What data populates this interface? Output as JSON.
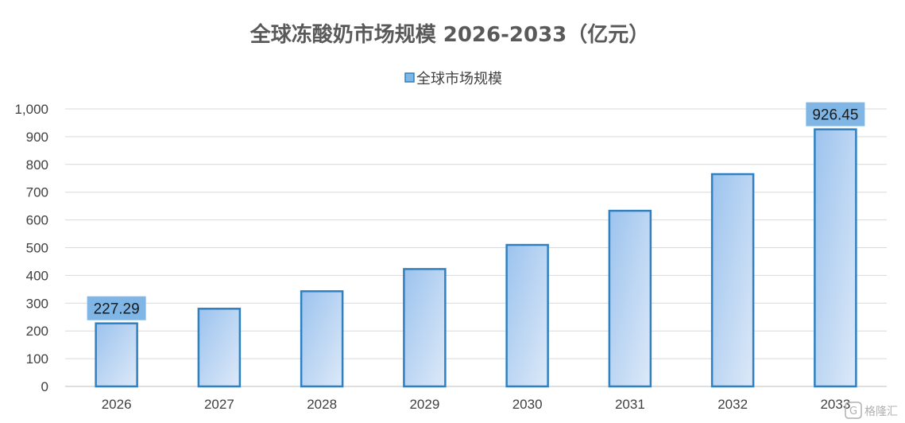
{
  "colors": {
    "bar_fill_top": "#9cc3ee",
    "bar_fill_bottom": "#dde9f8",
    "bar_stroke": "#2f80c0",
    "label_bg": "#7fb6e6",
    "grid": "#d9d9d9",
    "axis": "#bfbfbf"
  },
  "watermark": {
    "icon": "gelonghui-logo-icon",
    "text": "格隆汇"
  },
  "chart_data": {
    "type": "bar",
    "title": "全球冻酸奶市场规模 2026-2033（亿元）",
    "legend": {
      "position": "top",
      "items": [
        "全球市场规模"
      ]
    },
    "xlabel": "",
    "ylabel": "",
    "categories": [
      "2026",
      "2027",
      "2028",
      "2029",
      "2030",
      "2031",
      "2032",
      "2033"
    ],
    "series": [
      {
        "name": "全球市场规模",
        "values": [
          227.29,
          280,
          343,
          423,
          510,
          633,
          765,
          926.45
        ]
      }
    ],
    "data_labels": [
      {
        "category": "2026",
        "text": "227.29"
      },
      {
        "category": "2033",
        "text": "926.45"
      }
    ],
    "ylim": [
      0,
      1000
    ],
    "yticks": [
      0,
      100,
      200,
      300,
      400,
      500,
      600,
      700,
      800,
      900,
      1000
    ],
    "ytick_labels": [
      "0",
      "100",
      "200",
      "300",
      "400",
      "500",
      "600",
      "700",
      "800",
      "900",
      "1,000"
    ],
    "grid": true
  }
}
